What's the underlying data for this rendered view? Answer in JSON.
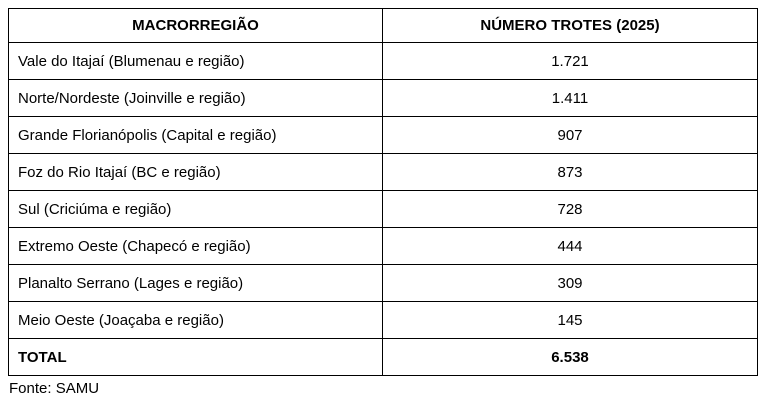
{
  "table": {
    "columns": [
      {
        "label": "MACRORREGIÃO"
      },
      {
        "label": "NÚMERO TROTES (2025)"
      }
    ],
    "rows": [
      {
        "region": "Vale do Itajaí (Blumenau e região)",
        "value": "1.721"
      },
      {
        "region": "Norte/Nordeste (Joinville e região)",
        "value": "1.411"
      },
      {
        "region": "Grande Florianópolis (Capital e região)",
        "value": "907"
      },
      {
        "region": "Foz do Rio Itajaí (BC e região)",
        "value": "873"
      },
      {
        "region": "Sul (Criciúma e região)",
        "value": "728"
      },
      {
        "region": "Extremo Oeste (Chapecó e região)",
        "value": "444"
      },
      {
        "region": "Planalto Serrano (Lages e região)",
        "value": "309"
      },
      {
        "region": "Meio Oeste (Joaçaba e região)",
        "value": "145"
      }
    ],
    "total_row": {
      "label": "TOTAL",
      "value": "6.538"
    }
  },
  "footer": {
    "source_label": "Fonte: SAMU"
  },
  "colors": {
    "border": "#000000",
    "text": "#000000",
    "background": "#ffffff"
  },
  "chart_data": {
    "type": "table",
    "title": "NÚMERO TROTES (2025)",
    "categories": [
      "Vale do Itajaí (Blumenau e região)",
      "Norte/Nordeste (Joinville e região)",
      "Grande Florianópolis (Capital e região)",
      "Foz do Rio Itajaí (BC e região)",
      "Sul (Criciúma e região)",
      "Extremo Oeste (Chapecó e região)",
      "Planalto Serrano (Lages e região)",
      "Meio Oeste (Joaçaba e região)"
    ],
    "values": [
      1721,
      1411,
      907,
      873,
      728,
      444,
      309,
      145
    ],
    "total": 6538,
    "columns": [
      "MACRORREGIÃO",
      "NÚMERO TROTES (2025)"
    ],
    "source": "Fonte: SAMU"
  }
}
